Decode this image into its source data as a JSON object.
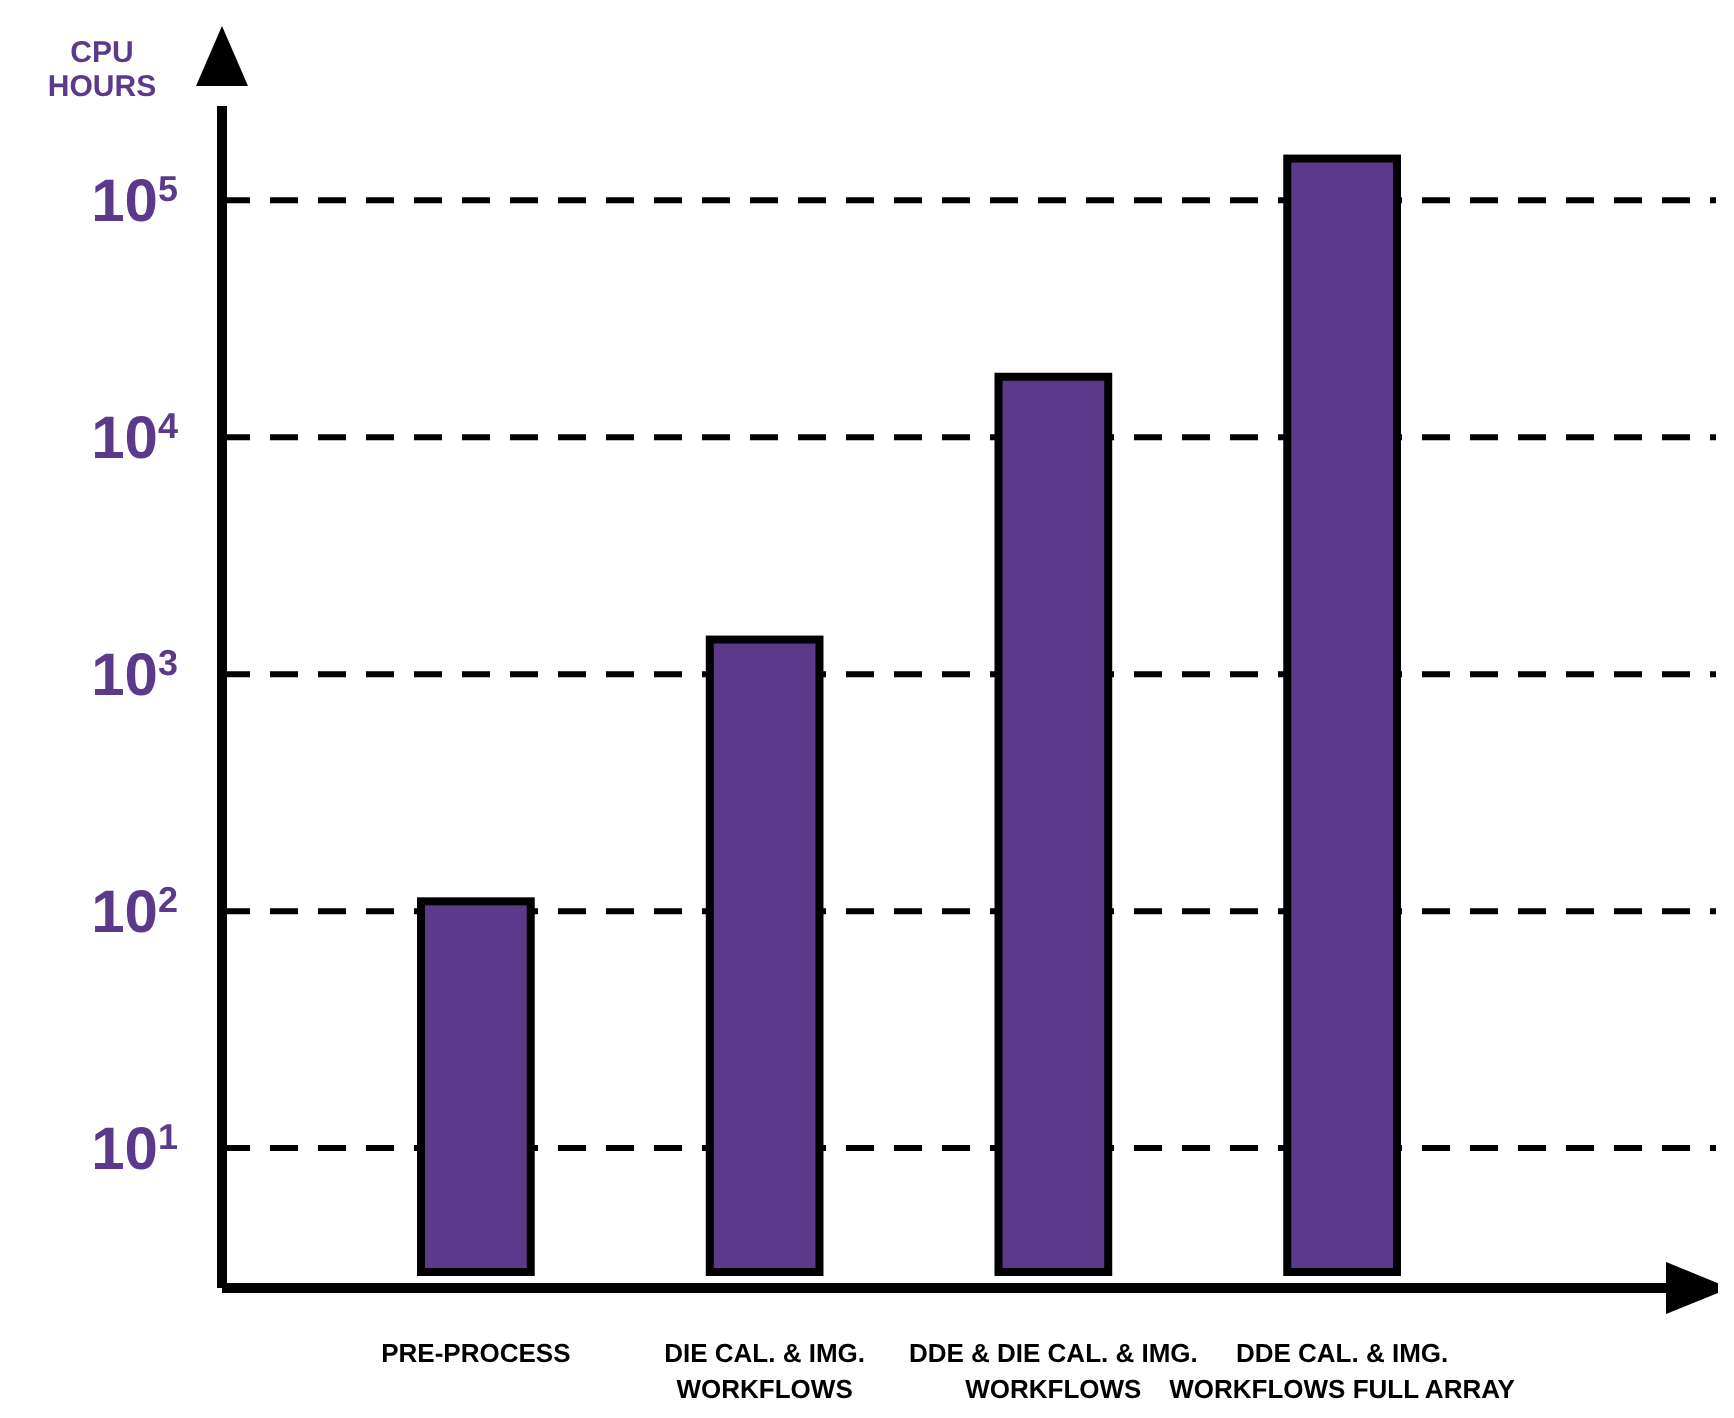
{
  "chart_data": {
    "type": "bar",
    "ylabel": "CPU HOURS",
    "categories": [
      "PRE-PROCESS",
      "DIE CAL. & IMG. WORKFLOWS",
      "DDE & DIE CAL. & IMG. WORKFLOWS",
      "DDE CAL. & IMG. WORKFLOWS FULL ARRAY"
    ],
    "values": [
      110,
      1400,
      18000,
      150000
    ],
    "color": "#5b3a8c",
    "log": "y",
    "ylim": [
      3,
      250000
    ],
    "yticks": [
      {
        "value": 10,
        "label": "10$^{1}$"
      },
      {
        "value": 100,
        "label": "10$^{2}$"
      },
      {
        "value": 1000,
        "label": "10$^{3}$"
      },
      {
        "value": 10000,
        "label": "10$^{4}$"
      },
      {
        "value": 100000,
        "label": "10$^{5}$"
      }
    ],
    "grid": "y"
  }
}
